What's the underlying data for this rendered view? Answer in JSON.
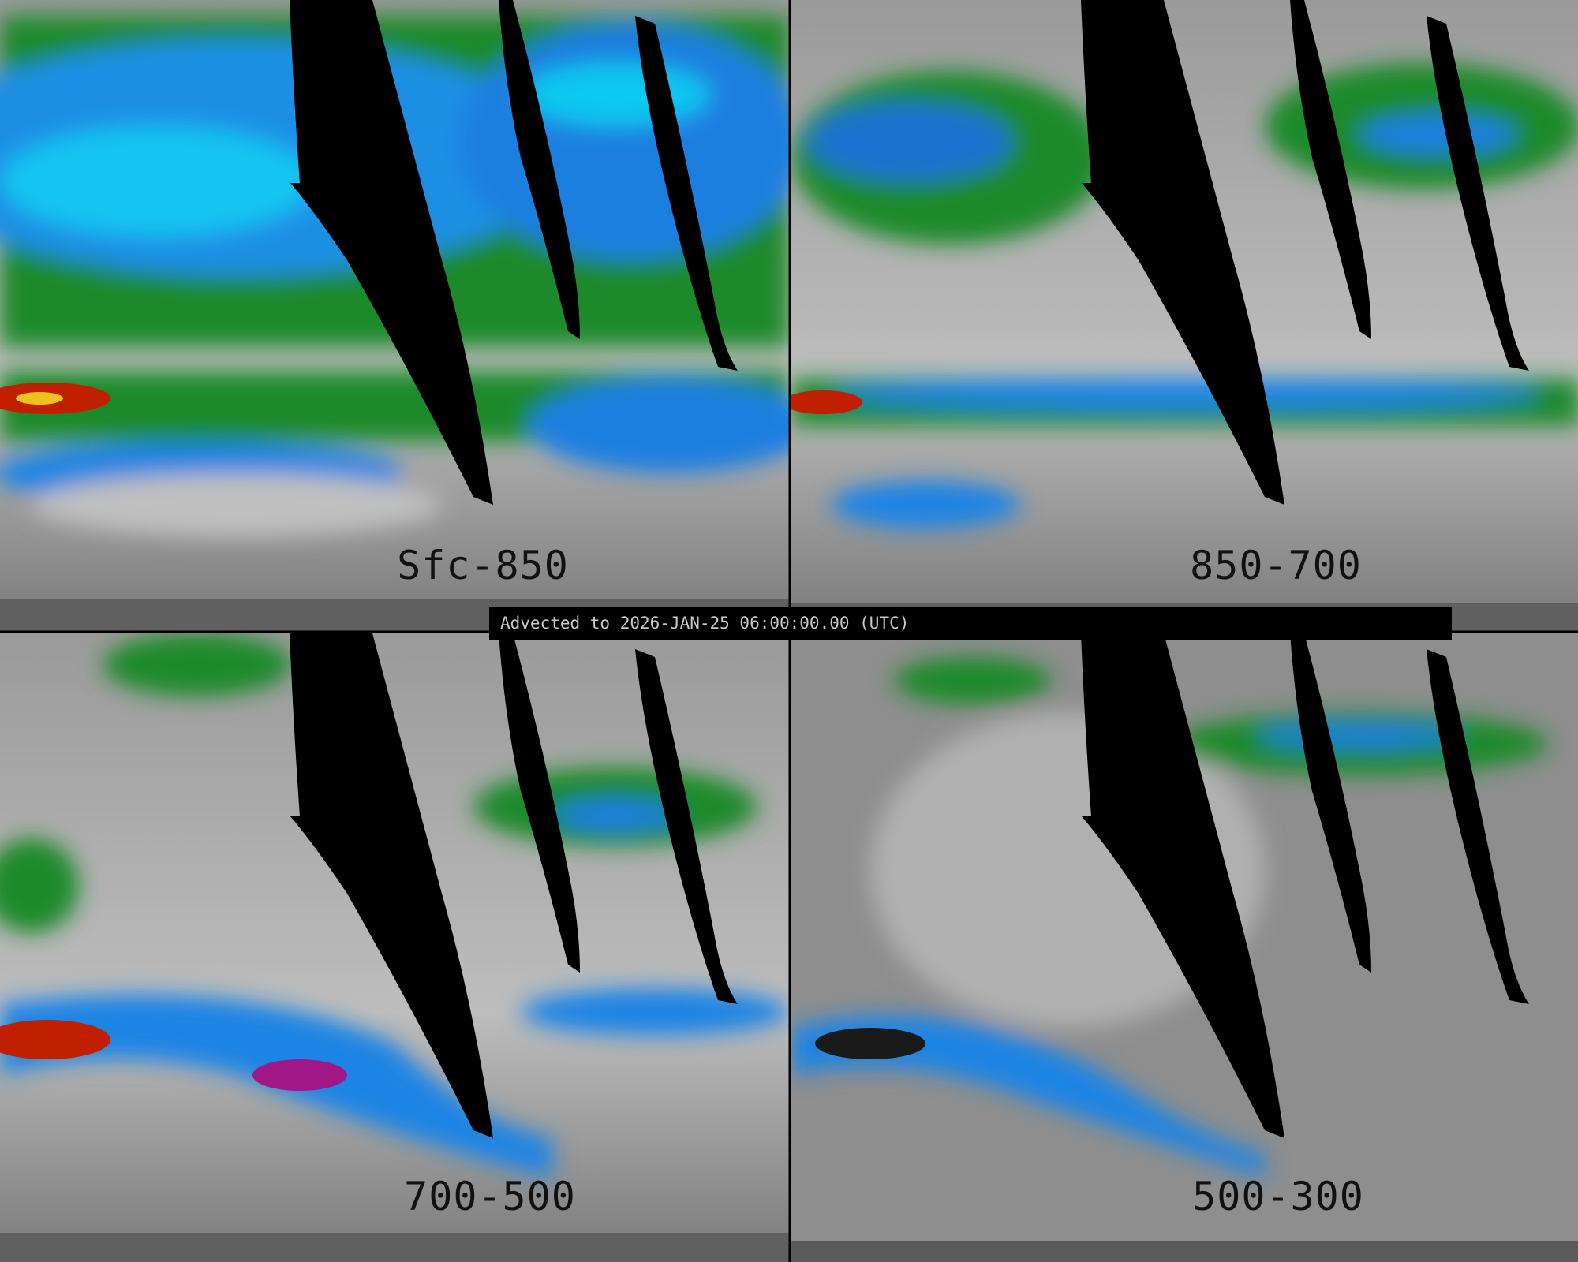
{
  "panels": [
    {
      "label": "Sfc-850"
    },
    {
      "label": "850-700"
    },
    {
      "label": "700-500"
    },
    {
      "label": "500-300"
    }
  ],
  "timestamp": "Advected to 2026-JAN-25 06:00:00.00 (UTC)",
  "colors": {
    "low": "#8a8a8a",
    "green": "#1f8a1f",
    "blue": "#1e7fe0",
    "cyan": "#12c0f0",
    "purple": "#b020c0",
    "red": "#d02000",
    "missing": "#000000"
  }
}
